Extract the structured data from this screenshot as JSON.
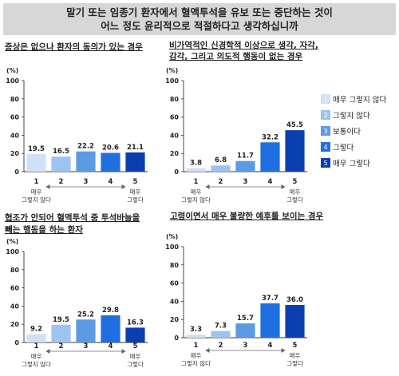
{
  "header": {
    "line1": "말기 또는 임종기 환자에서 혈액투석을 유보 또는 중단하는 것이",
    "line2": "어느 정도 윤리적으로 적절하다고 생각하십니까"
  },
  "legend": [
    {
      "num": "1",
      "label": "매우 그렇지 않다",
      "color": "#cfe0f7"
    },
    {
      "num": "2",
      "label": "그렇지 않다",
      "color": "#9dc3f0"
    },
    {
      "num": "3",
      "label": "보통이다",
      "color": "#5b9be3"
    },
    {
      "num": "4",
      "label": "그렇다",
      "color": "#1f6fe0"
    },
    {
      "num": "5",
      "label": "매우 그렇다",
      "color": "#0a3fb0"
    }
  ],
  "axis": {
    "unit": "(%)",
    "yticks": [
      "0",
      "20",
      "40",
      "60",
      "80",
      "100"
    ],
    "xticks": [
      "1",
      "2",
      "3",
      "4",
      "5"
    ],
    "x_low_label_1": "매우",
    "x_low_label_2": "그렇지 않다",
    "x_high_label_1": "매우",
    "x_high_label_2": "그렇다"
  },
  "chart_data": [
    {
      "type": "bar",
      "title": "증상은 없으나 환자의 동의가 있는 경우",
      "categories": [
        "1",
        "2",
        "3",
        "4",
        "5"
      ],
      "values": [
        19.5,
        16.5,
        22.2,
        20.6,
        21.1
      ],
      "ylabel": "(%)",
      "ylim": [
        0,
        100
      ],
      "grid": false
    },
    {
      "type": "bar",
      "title": "비가역적인 신경학적 이상으로 생각, 자각, 감각, 그리고 의도적 행동이 없는 경우",
      "categories": [
        "1",
        "2",
        "3",
        "4",
        "5"
      ],
      "values": [
        3.8,
        6.8,
        11.7,
        32.2,
        45.5
      ],
      "ylabel": "(%)",
      "ylim": [
        0,
        100
      ],
      "grid": false
    },
    {
      "type": "bar",
      "title": "협조가 안되어 혈액투석 중 투석바늘을 빼는 행동을 하는 환자",
      "categories": [
        "1",
        "2",
        "3",
        "4",
        "5"
      ],
      "values": [
        9.2,
        19.5,
        25.2,
        29.8,
        16.3
      ],
      "ylabel": "(%)",
      "ylim": [
        0,
        100
      ],
      "grid": false
    },
    {
      "type": "bar",
      "title": "고령이면서 매우 불량한 예후를 보이는 경우",
      "categories": [
        "1",
        "2",
        "3",
        "4",
        "5"
      ],
      "values": [
        3.3,
        7.3,
        15.7,
        37.7,
        36.0
      ],
      "ylabel": "(%)",
      "ylim": [
        0,
        100
      ],
      "grid": false
    }
  ]
}
